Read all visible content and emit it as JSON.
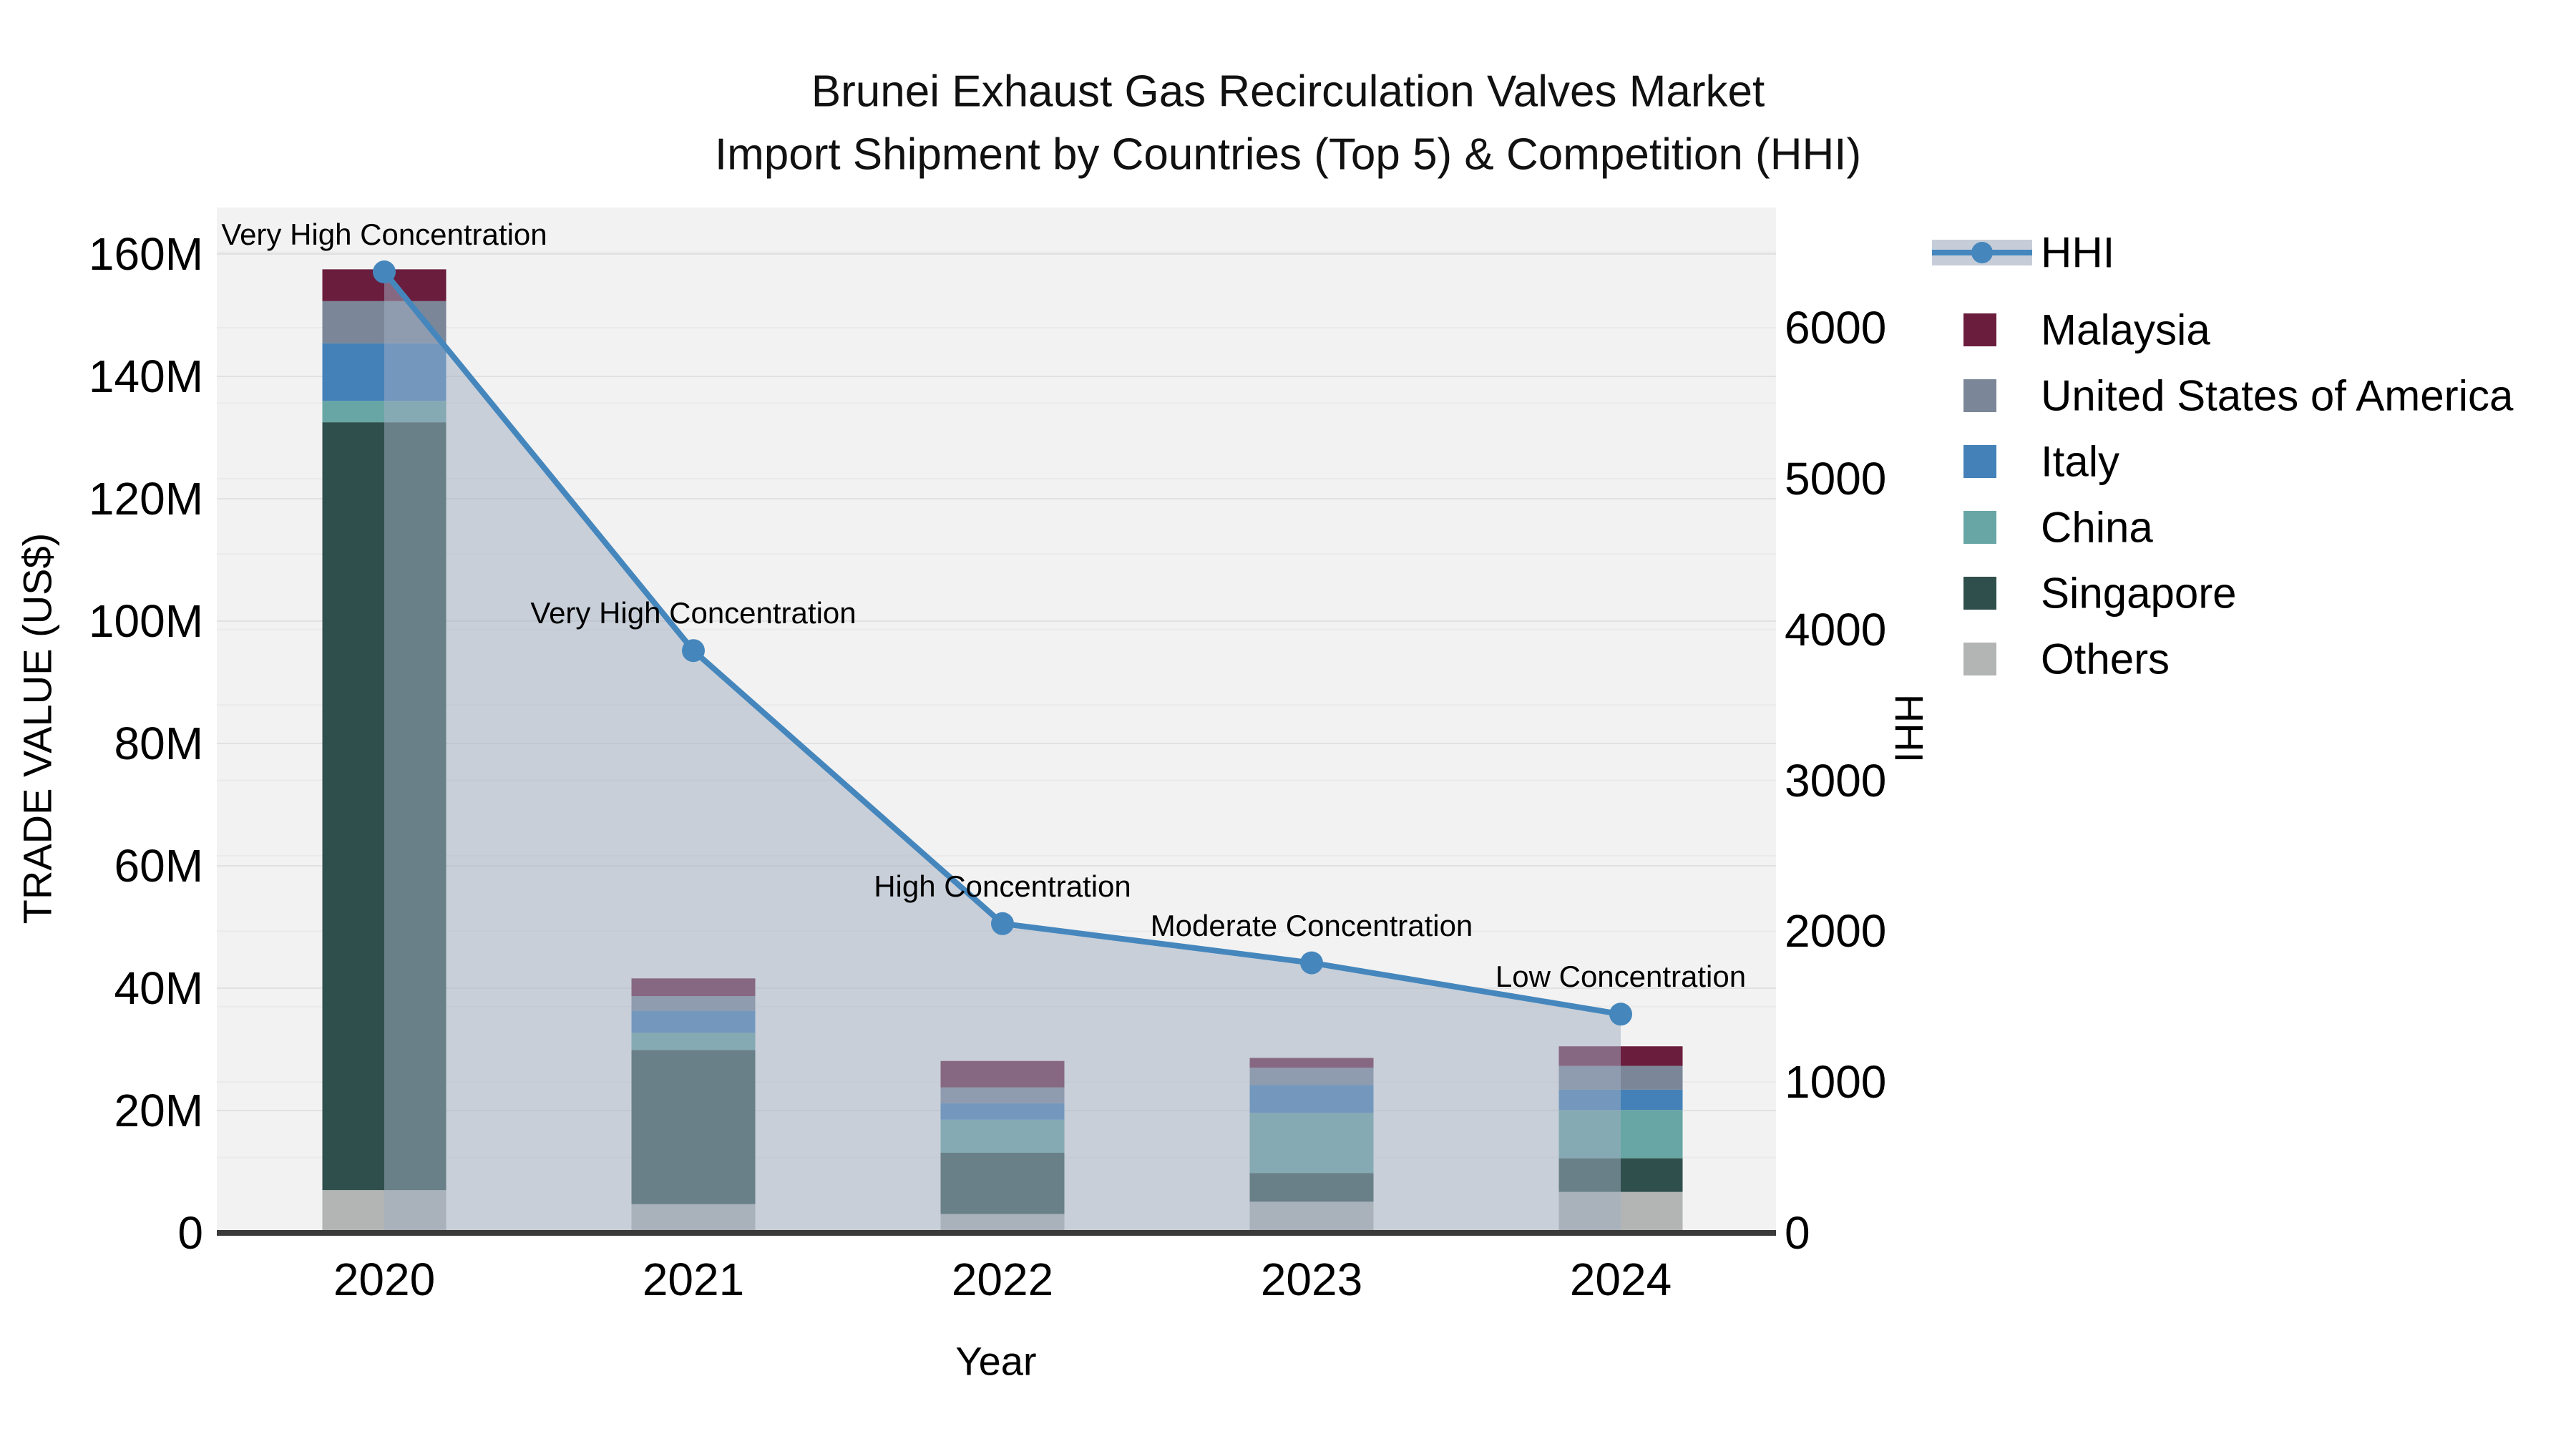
{
  "title": {
    "line1": "Brunei Exhaust Gas Recirculation Valves Market",
    "line2": "Import Shipment by Countries (Top 5) & Competition (HHI)"
  },
  "axes": {
    "left": {
      "title": "TRADE VALUE (US$)",
      "tick_values": [
        0,
        20,
        40,
        60,
        80,
        100,
        120,
        140,
        160
      ],
      "tick_labels": [
        "0",
        "20M",
        "40M",
        "60M",
        "80M",
        "100M",
        "120M",
        "140M",
        "160M"
      ]
    },
    "right": {
      "title": "HHI",
      "tick_values": [
        0,
        1000,
        2000,
        3000,
        4000,
        5000,
        6000
      ],
      "tick_labels": [
        "0",
        "1000",
        "2000",
        "3000",
        "4000",
        "5000",
        "6000"
      ]
    },
    "x": {
      "title": "Year",
      "categories": [
        "2020",
        "2021",
        "2022",
        "2023",
        "2024"
      ]
    }
  },
  "legend": {
    "items": [
      {
        "label": "HHI",
        "type": "line",
        "color": "#4587bd",
        "band_color": "#c6cdd9"
      },
      {
        "label": "Malaysia",
        "type": "box",
        "color": "#6b1d3d"
      },
      {
        "label": "United States of America",
        "type": "box",
        "color": "#7b8798"
      },
      {
        "label": "Italy",
        "type": "box",
        "color": "#4381b8"
      },
      {
        "label": "China",
        "type": "box",
        "color": "#67a6a4"
      },
      {
        "label": "Singapore",
        "type": "box",
        "color": "#2f4f4c"
      },
      {
        "label": "Others",
        "type": "box",
        "color": "#b2b5b4"
      }
    ]
  },
  "chart_data": {
    "type": "bar",
    "subtype": "stacked-bar-with-line",
    "title": "Brunei Exhaust Gas Recirculation Valves Market — Import Shipment by Countries (Top 5) & Competition (HHI)",
    "xlabel": "Year",
    "ylabel": "TRADE VALUE (US$)",
    "y2label": "HHI",
    "units": "million US$",
    "ylim": [
      0,
      167
    ],
    "y2lim": [
      0,
      6770
    ],
    "grid": "on",
    "legend_position": "right",
    "categories": [
      "2020",
      "2021",
      "2022",
      "2023",
      "2024"
    ],
    "stack_order_bottom_to_top": [
      "Others",
      "Singapore",
      "China",
      "Italy",
      "United States of America",
      "Malaysia"
    ],
    "series": [
      {
        "name": "Malaysia",
        "color": "#6b1d3d",
        "values": [
          5.2,
          2.9,
          4.3,
          1.6,
          3.2
        ]
      },
      {
        "name": "United States of America",
        "color": "#7b8798",
        "values": [
          6.9,
          2.4,
          2.6,
          2.8,
          3.9
        ]
      },
      {
        "name": "Italy",
        "color": "#4381b8",
        "values": [
          9.4,
          3.6,
          2.7,
          4.6,
          3.3
        ]
      },
      {
        "name": "China",
        "color": "#67a6a4",
        "values": [
          3.5,
          2.8,
          5.4,
          9.8,
          7.9
        ]
      },
      {
        "name": "Singapore",
        "color": "#2f4f4c",
        "values": [
          125.5,
          25.2,
          10.0,
          4.7,
          5.5
        ]
      },
      {
        "name": "Others",
        "color": "#b2b5b4",
        "values": [
          7.0,
          4.7,
          3.1,
          5.1,
          6.7
        ]
      }
    ],
    "bar_totals": [
      157.5,
      41.6,
      28.1,
      28.6,
      30.5
    ],
    "line_series": {
      "name": "HHI",
      "color": "#4587bd",
      "fill_color": "rgba(161,174,193,0.52)",
      "values": [
        6370,
        3860,
        2050,
        1790,
        1450
      ]
    },
    "annotations": [
      {
        "text": "Very High Concentration",
        "category": "2020"
      },
      {
        "text": "Very High Concentration",
        "category": "2021"
      },
      {
        "text": "High Concentration",
        "category": "2022"
      },
      {
        "text": "Moderate Concentration",
        "category": "2023"
      },
      {
        "text": "Low Concentration",
        "category": "2024"
      }
    ]
  },
  "colors": {
    "plot_background": "#f2f2f2",
    "grid_major_left": "#e1e1e1",
    "grid_minor_right": "#eaeaea",
    "axis_line": "#3a3a3a"
  }
}
